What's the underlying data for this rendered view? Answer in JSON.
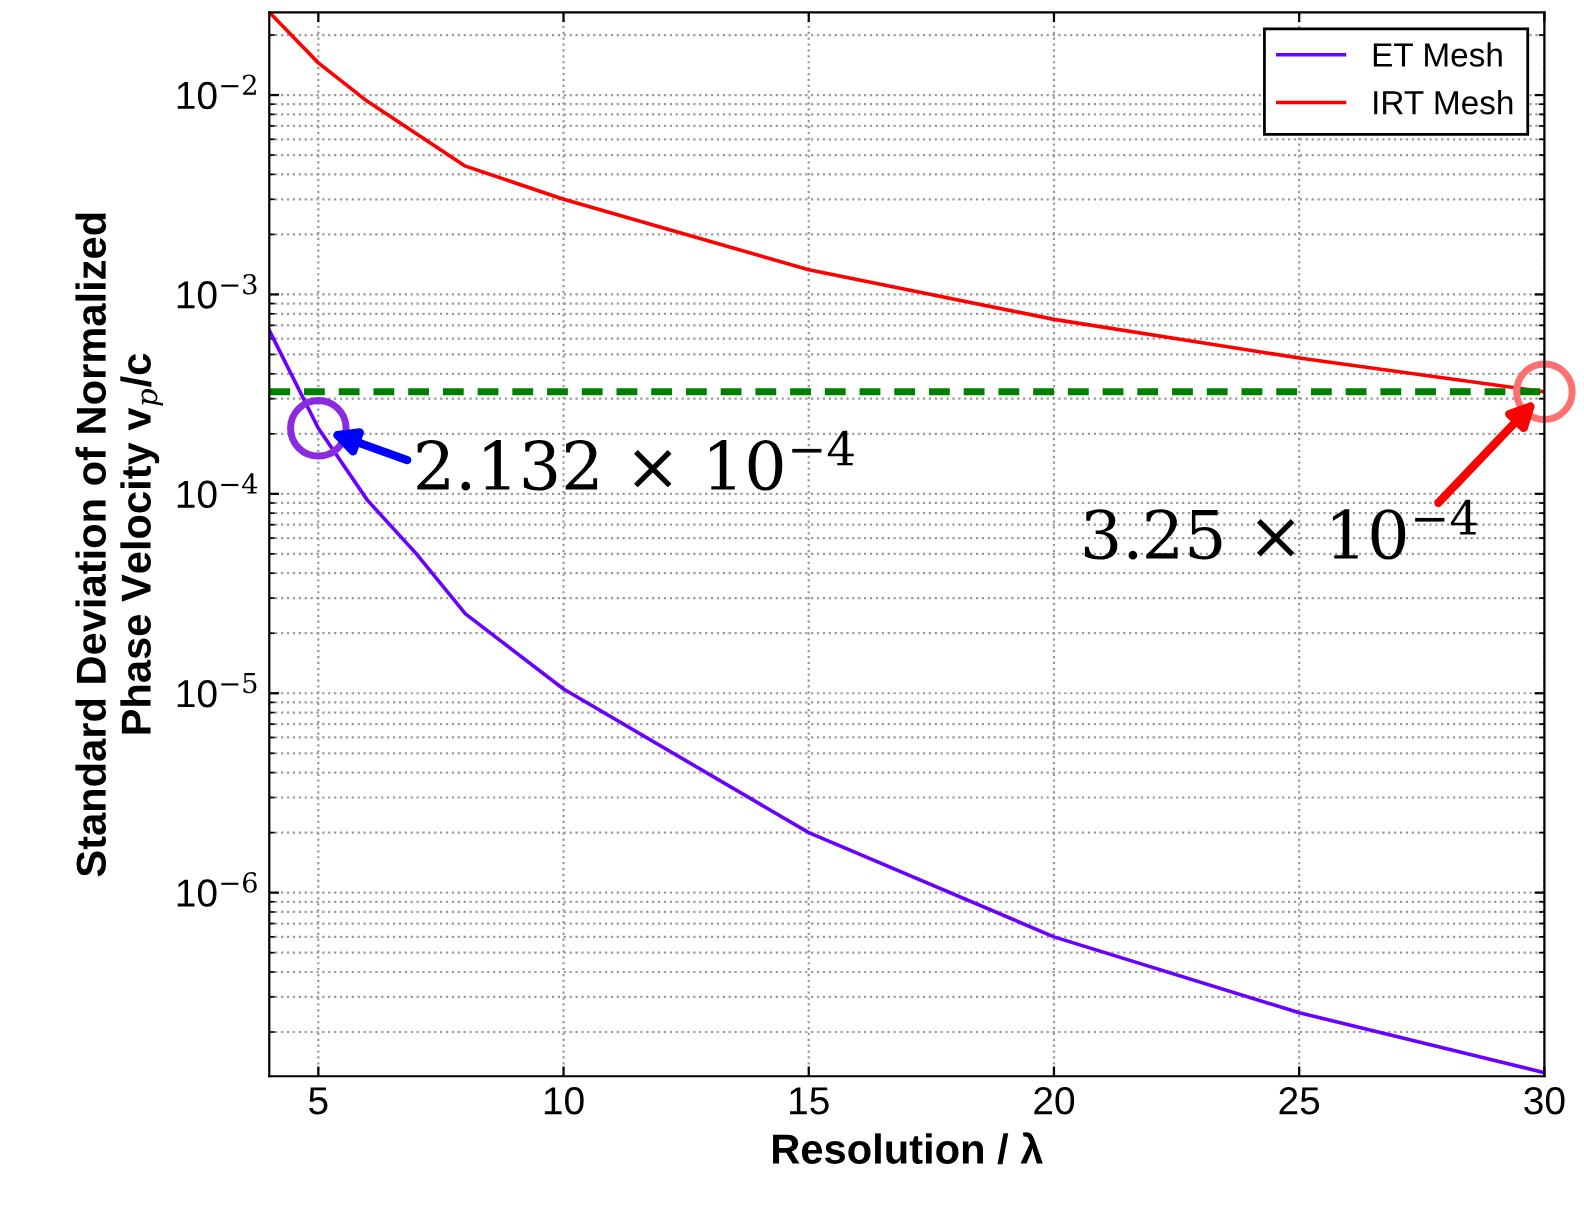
{
  "chart_data": {
    "type": "line",
    "xlabel": "Resolution / λ",
    "ylabel": "Standard Deviation of Normalized\nPhase Velocity v$_{p}$/c",
    "xlim": [
      4,
      30
    ],
    "xticks": [
      5,
      10,
      15,
      20,
      25,
      30
    ],
    "ylim": [
      1.2e-07,
      0.026
    ],
    "yticks": [
      {
        "value": 1e-06,
        "label": "10$^{−6}$"
      },
      {
        "value": 1e-05,
        "label": "10$^{−5}$"
      },
      {
        "value": 0.0001,
        "label": "10$^{−4}$"
      },
      {
        "value": 0.001,
        "label": "10$^{−3}$"
      },
      {
        "value": 0.01,
        "label": "10$^{−2}$"
      }
    ],
    "log": "y",
    "grid": true,
    "legend": "top right",
    "series": [
      {
        "name": "ET Mesh",
        "color": "#6a00ff",
        "x": [
          4,
          5,
          6,
          7,
          8,
          10,
          15,
          20,
          25,
          30
        ],
        "values": [
          0.00066,
          0.0002132,
          9.3e-05,
          5e-05,
          2.5e-05,
          1.05e-05,
          2e-06,
          6e-07,
          2.5e-07,
          1.25e-07
        ]
      },
      {
        "name": "IRT Mesh",
        "color": "#ff0000",
        "x": [
          4,
          5,
          6,
          8,
          10,
          15,
          20,
          25,
          30
        ],
        "values": [
          0.026,
          0.0145,
          0.0093,
          0.0044,
          0.003,
          0.00133,
          0.00075,
          0.00048,
          0.000325
        ]
      }
    ],
    "ref_lines": [
      {
        "axis": "y",
        "value": 0.000325,
        "color": "#008000",
        "line_style": "dashed"
      }
    ],
    "annotations": [
      {
        "text": "2.132 × 10$^{−4}$",
        "x": 5,
        "y": 0.0002132
      },
      {
        "text": "3.25 × 10$^{−4}$",
        "x": 30,
        "y": 0.000325
      }
    ]
  }
}
